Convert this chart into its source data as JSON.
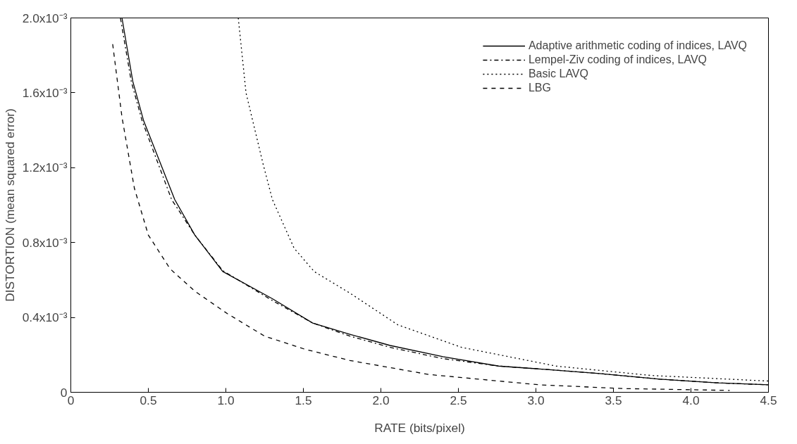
{
  "chart_data": {
    "type": "line",
    "xlabel": "RATE (bits/pixel)",
    "ylabel": "DISTORTION (mean squared error)",
    "xlim": [
      0,
      4.5
    ],
    "ylim": [
      0,
      0.002
    ],
    "xticks": [
      0,
      0.5,
      {
        "value": 1,
        "label": "1.0"
      },
      1.5,
      {
        "value": 2,
        "label": "2.0"
      },
      2.5,
      {
        "value": 3,
        "label": "3.0"
      },
      3.5,
      {
        "value": 4,
        "label": "4.0"
      },
      4.5
    ],
    "yticks": [
      0,
      {
        "value": 0.0004,
        "label": "0.4x10⁻³"
      },
      {
        "value": 0.0008,
        "label": "0.8x10⁻³"
      },
      {
        "value": 0.0012,
        "label": "1.2x10⁻³"
      },
      {
        "value": 0.0016,
        "label": "1.6x10⁻³"
      },
      {
        "value": 0.002,
        "label": "2.0x10⁻³"
      }
    ],
    "grid": false,
    "legend": "top right",
    "marker": "none",
    "series": [
      {
        "name": "Adaptive arithmetic coding of indices, LAVQ",
        "color": "#000000",
        "line_style": "solid",
        "x": [
          0.33,
          0.4,
          0.47,
          0.67,
          0.8,
          0.98,
          1.3,
          1.56,
          1.8,
          2.06,
          2.4,
          2.76,
          3.1,
          3.41,
          3.8,
          4.18,
          4.5
        ],
        "values": [
          0.002,
          0.00166,
          0.00145,
          0.00103,
          0.00084,
          0.000645,
          0.0005,
          0.00037,
          0.00031,
          0.00025,
          0.00019,
          0.00014,
          0.00012,
          0.0001,
          7e-05,
          5e-05,
          4e-05
        ]
      },
      {
        "name": "Lempel-Ziv coding of indices, LAVQ",
        "color": "#000000",
        "line_style": "dashdot",
        "x": [
          0.32,
          0.39,
          0.46,
          0.65,
          0.8,
          0.98,
          1.3,
          1.56,
          1.8,
          2.06,
          2.4,
          2.76,
          3.1,
          3.41,
          3.8,
          4.18,
          4.5
        ],
        "values": [
          0.002,
          0.00166,
          0.00145,
          0.00103,
          0.00084,
          0.00065,
          0.00049,
          0.00037,
          0.0003,
          0.00024,
          0.00018,
          0.00014,
          0.00012,
          0.0001,
          7e-05,
          5e-05,
          4e-05
        ]
      },
      {
        "name": "Basic LAVQ",
        "color": "#000000",
        "line_style": "dotted",
        "x": [
          1.08,
          1.13,
          1.24,
          1.3,
          1.44,
          1.57,
          1.8,
          2.11,
          2.52,
          3.13,
          3.74,
          4.5
        ],
        "values": [
          0.002,
          0.0016,
          0.00122,
          0.00103,
          0.00077,
          0.000645,
          0.00053,
          0.00036,
          0.00024,
          0.00014,
          9e-05,
          6e-05
        ]
      },
      {
        "name": "LBG",
        "color": "#000000",
        "line_style": "dashed",
        "x": [
          0.27,
          0.33,
          0.41,
          0.5,
          0.64,
          0.8,
          1.01,
          1.25,
          1.51,
          1.8,
          2.31,
          3.02,
          3.56,
          4.25
        ],
        "values": [
          0.00186,
          0.00147,
          0.00109,
          0.00084,
          0.00066,
          0.00054,
          0.00042,
          0.0003,
          0.00023,
          0.00017,
          9.5e-05,
          4e-05,
          2e-05,
          1e-05
        ]
      }
    ]
  }
}
